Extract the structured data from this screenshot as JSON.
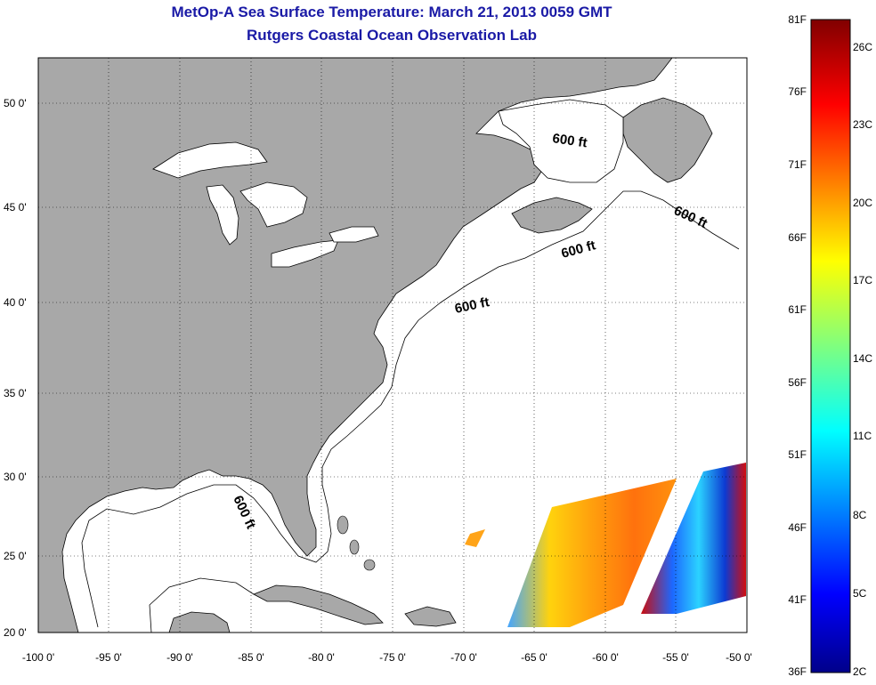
{
  "title": {
    "line1": "MetOp-A Sea Surface Temperature:  March 21, 2013 0059 GMT",
    "line2": "Rutgers Coastal Ocean Observation Lab"
  },
  "map": {
    "projection": "lat-lon",
    "lon_range": [
      -100,
      -50
    ],
    "lat_range": [
      20,
      52.5
    ],
    "land_color": "#a8a8a8",
    "water_color": "#ffffff",
    "grid": "dotted",
    "lat_ticks": [
      "50 0'",
      "45 0'",
      "40 0'",
      "35 0'",
      "30 0'",
      "25 0'",
      "20 0'"
    ],
    "lon_ticks": [
      "-100 0'",
      "-95 0'",
      "-90 0'",
      "-85 0'",
      "-80 0'",
      "-75 0'",
      "-70 0'",
      "-65 0'",
      "-60 0'",
      "-55 0'",
      "-50 0'"
    ],
    "isobath_labels": [
      "600 ft",
      "600 ft",
      "600 ft",
      "600 ft",
      "600 ft"
    ]
  },
  "colorbar": {
    "fahrenheit": [
      "81F",
      "76F",
      "71F",
      "66F",
      "61F",
      "56F",
      "51F",
      "46F",
      "41F",
      "36F"
    ],
    "celsius": [
      "26C",
      "23C",
      "20C",
      "17C",
      "14C",
      "11C",
      "8C",
      "5C",
      "2C"
    ],
    "colors": [
      "#800000",
      "#ff0000",
      "#ff8000",
      "#ffff00",
      "#80ff80",
      "#00ffff",
      "#0080ff",
      "#0000ff",
      "#000080"
    ]
  }
}
